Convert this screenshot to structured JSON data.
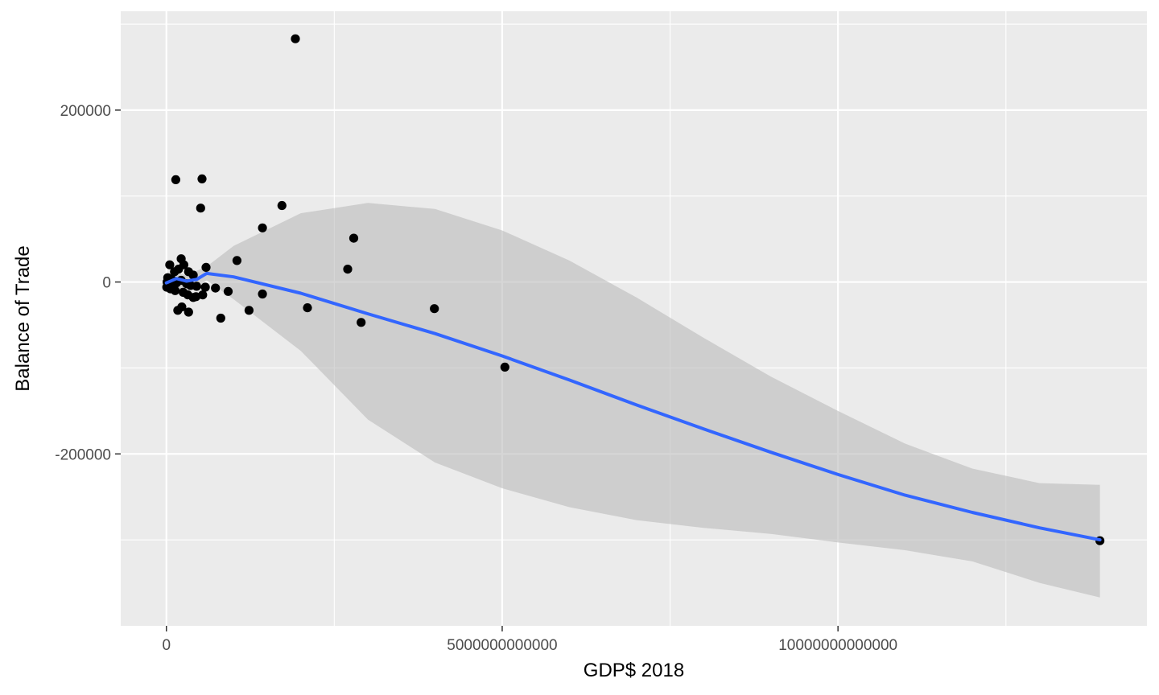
{
  "chart_data": {
    "type": "scatter",
    "title": "",
    "xlabel": "GDP$ 2018",
    "ylabel": "Balance of Trade",
    "xlim": [
      -680000000000,
      14600000000000
    ],
    "ylim": [
      -400000,
      315000
    ],
    "x_ticks": [
      0,
      5000000000000,
      10000000000000
    ],
    "x_tick_labels": [
      "0",
      "5000000000000",
      "10000000000000"
    ],
    "y_ticks": [
      -200000,
      0,
      200000
    ],
    "y_tick_labels": [
      "-200000",
      "0",
      "200000"
    ],
    "grid": true,
    "legend": "none",
    "colors": {
      "panel": "#ebebeb",
      "grid": "#ffffff",
      "points": "#000000",
      "smooth_line": "#3366ff",
      "confidence_band": "#bdbdbd"
    },
    "points": [
      {
        "x": 1920000000000,
        "y": 283000
      },
      {
        "x": 140000000000,
        "y": 119000
      },
      {
        "x": 530000000000,
        "y": 120000
      },
      {
        "x": 510000000000,
        "y": 86000
      },
      {
        "x": 1720000000000,
        "y": 89000
      },
      {
        "x": 1430000000000,
        "y": 63000
      },
      {
        "x": 2790000000000,
        "y": 51000
      },
      {
        "x": 1050000000000,
        "y": 25000
      },
      {
        "x": 2700000000000,
        "y": 15000
      },
      {
        "x": 590000000000,
        "y": 17000
      },
      {
        "x": 220000000000,
        "y": 27000
      },
      {
        "x": 50000000000,
        "y": 20000
      },
      {
        "x": 260000000000,
        "y": 20000
      },
      {
        "x": 120000000000,
        "y": 12000
      },
      {
        "x": 180000000000,
        "y": 15000
      },
      {
        "x": 330000000000,
        "y": 12000
      },
      {
        "x": 400000000000,
        "y": 8000
      },
      {
        "x": 20000000000,
        "y": 5000
      },
      {
        "x": 80000000000,
        "y": 3000
      },
      {
        "x": 10000000000,
        "y": 0
      },
      {
        "x": 30000000000,
        "y": -2000
      },
      {
        "x": 150000000000,
        "y": -1000
      },
      {
        "x": 220000000000,
        "y": 2000
      },
      {
        "x": 300000000000,
        "y": -2000
      },
      {
        "x": 360000000000,
        "y": -4000
      },
      {
        "x": 450000000000,
        "y": -5000
      },
      {
        "x": 5000000000,
        "y": -6000
      },
      {
        "x": 60000000000,
        "y": -8000
      },
      {
        "x": 130000000000,
        "y": -10000
      },
      {
        "x": 250000000000,
        "y": -12000
      },
      {
        "x": 320000000000,
        "y": -15000
      },
      {
        "x": 400000000000,
        "y": -18000
      },
      {
        "x": 440000000000,
        "y": -17000
      },
      {
        "x": 540000000000,
        "y": -15000
      },
      {
        "x": 580000000000,
        "y": -6000
      },
      {
        "x": 730000000000,
        "y": -7000
      },
      {
        "x": 920000000000,
        "y": -11000
      },
      {
        "x": 1430000000000,
        "y": -14000
      },
      {
        "x": 170000000000,
        "y": -33000
      },
      {
        "x": 230000000000,
        "y": -29000
      },
      {
        "x": 330000000000,
        "y": -35000
      },
      {
        "x": 810000000000,
        "y": -42000
      },
      {
        "x": 1230000000000,
        "y": -33000
      },
      {
        "x": 2100000000000,
        "y": -30000
      },
      {
        "x": 2900000000000,
        "y": -47000
      },
      {
        "x": 3990000000000,
        "y": -31000
      },
      {
        "x": 5040000000000,
        "y": -99000
      },
      {
        "x": 13900000000000,
        "y": -301000
      }
    ],
    "smooth": {
      "method": "loess",
      "x": [
        0,
        150000000000,
        300000000000,
        450000000000,
        600000000000,
        1000000000000,
        2000000000000,
        3000000000000,
        4000000000000,
        5000000000000,
        6000000000000,
        7000000000000,
        8000000000000,
        9000000000000,
        10000000000000,
        11000000000000,
        12000000000000,
        13000000000000,
        13900000000000
      ],
      "y": [
        -1000,
        4000,
        1000,
        3000,
        10000,
        6000,
        -13000,
        -37000,
        -60000,
        -86000,
        -114000,
        -143000,
        -171000,
        -198000,
        -224000,
        -248000,
        -268000,
        -286000,
        -300000
      ],
      "lower": [
        -10000,
        -9000,
        -11000,
        -6000,
        2000,
        -20000,
        -80000,
        -160000,
        -210000,
        -240000,
        -262000,
        -277000,
        -286000,
        -293000,
        -303000,
        -312000,
        -325000,
        -350000,
        -367000
      ],
      "upper": [
        9000,
        10000,
        8000,
        13000,
        18000,
        42000,
        80000,
        92000,
        85000,
        60000,
        25000,
        -18000,
        -65000,
        -110000,
        -150000,
        -188000,
        -217000,
        -234000,
        -236000
      ]
    }
  }
}
